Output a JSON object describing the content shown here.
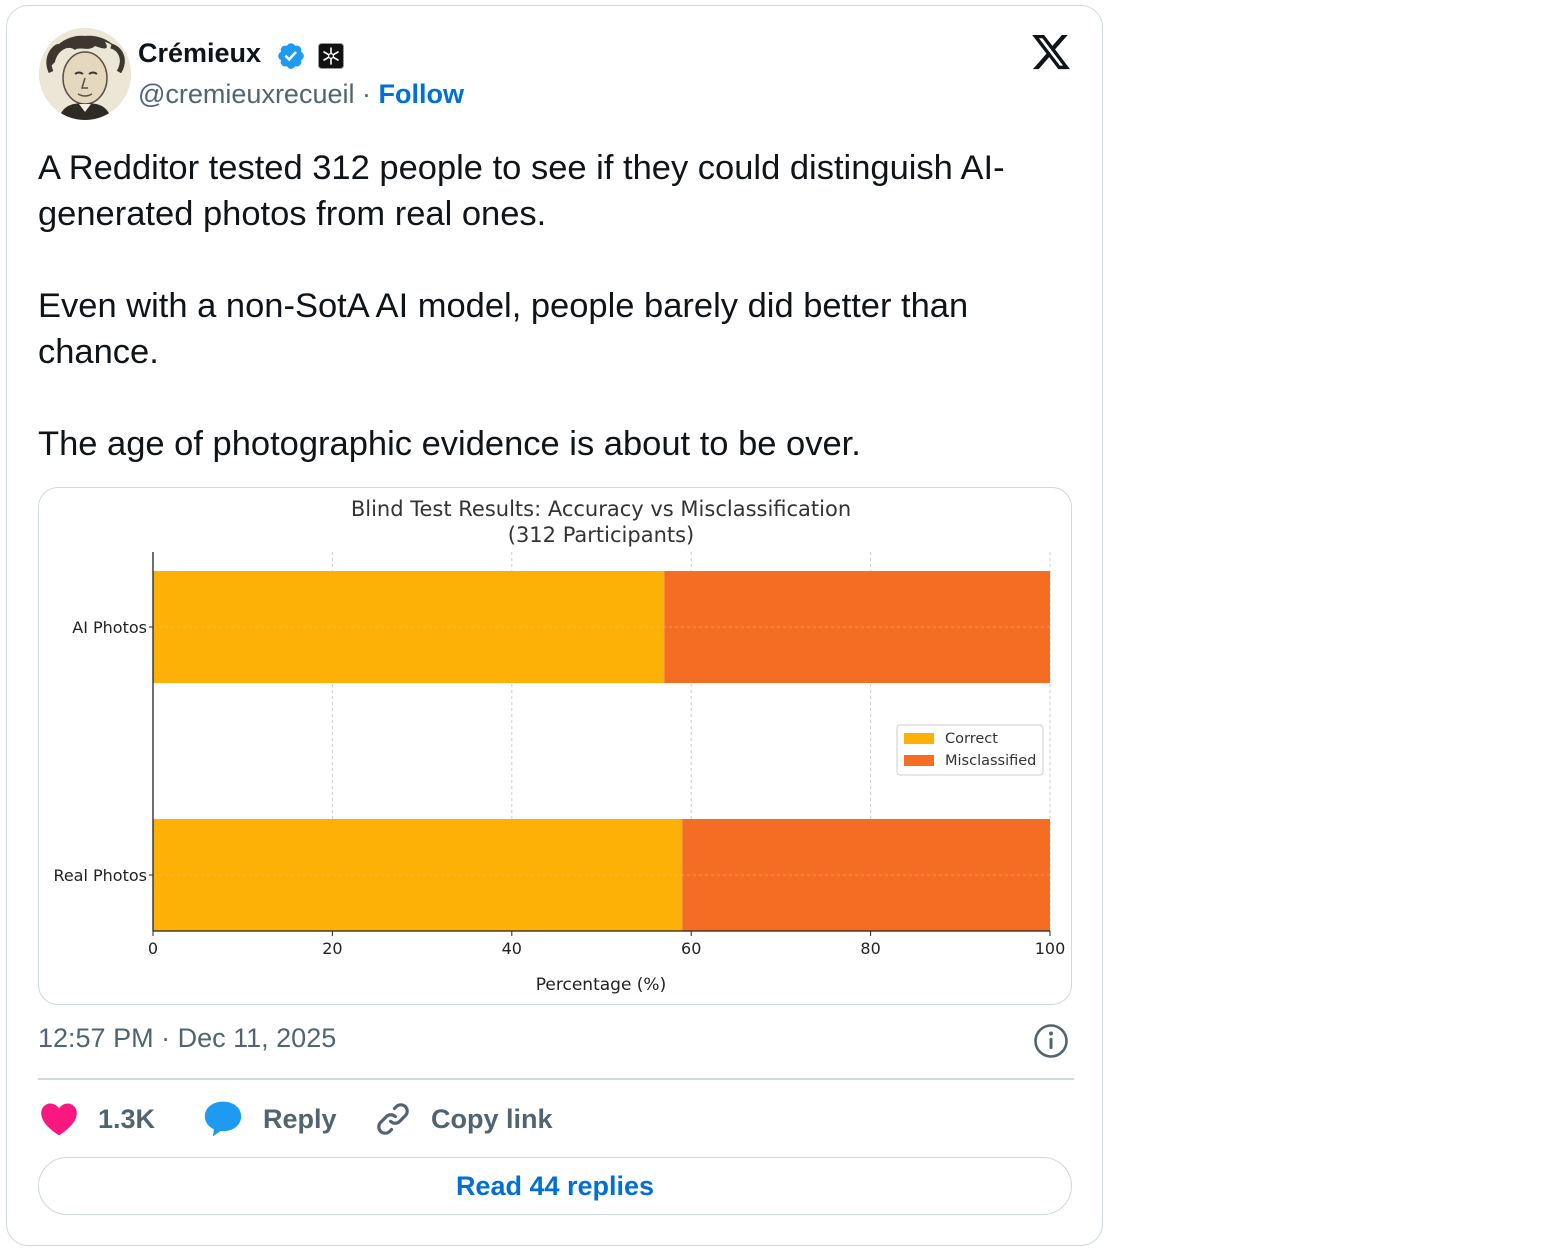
{
  "author": {
    "name": "Crémieux",
    "handle": "@cremieuxrecueil",
    "separator": "·",
    "follow_label": "Follow",
    "verified_color": "#1d9bf0",
    "avatar_icon": "avatar-illustration"
  },
  "tweet": {
    "paragraphs": [
      "A Redditor tested 312 people to see if they could distinguish AI-generated photos from real ones.",
      "Even with a non-SotA AI model, people barely did better than chance.",
      "The age of photographic evidence is about to be over."
    ],
    "time": "12:57 PM",
    "date_separator": "·",
    "date": "Dec 11, 2025"
  },
  "actions": {
    "like_count": "1.3K",
    "reply_label": "Reply",
    "copy_label": "Copy link",
    "read_replies_label": "Read 44 replies",
    "like_color": "#f91880",
    "reply_color": "#1d9bf0"
  },
  "chart_data": {
    "type": "bar",
    "orientation": "horizontal",
    "stacked": true,
    "title": "Blind Test Results: Accuracy vs Misclassification\n(312 Participants)",
    "xlabel": "Percentage (%)",
    "ylabel": "",
    "xlim": [
      0,
      100
    ],
    "xticks": [
      0,
      20,
      40,
      60,
      80,
      100
    ],
    "categories": [
      "AI Photos",
      "Real Photos"
    ],
    "series": [
      {
        "name": "Correct",
        "values": [
          57,
          59
        ],
        "color": "#fdb005"
      },
      {
        "name": "Misclassified",
        "values": [
          43,
          41
        ],
        "color": "#f46d23"
      }
    ],
    "grid": "x-dashed",
    "legend_position": "center-right"
  }
}
